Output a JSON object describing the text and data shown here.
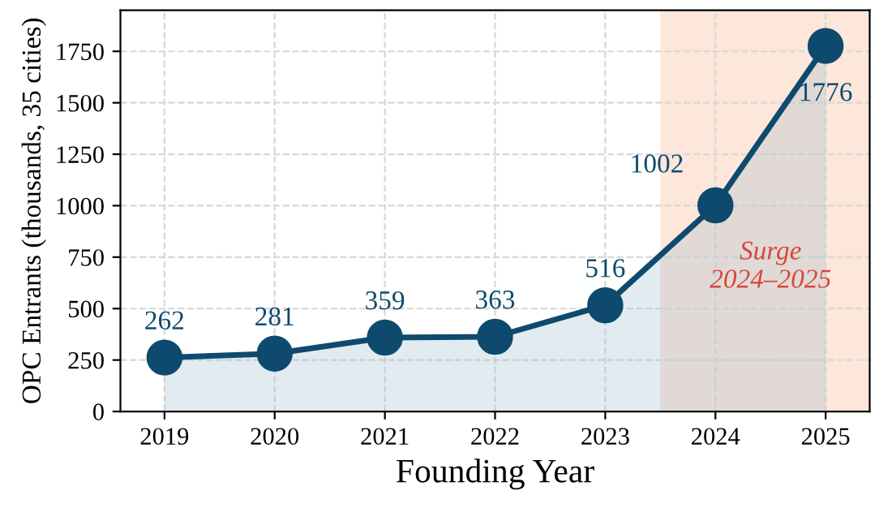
{
  "chart_data": {
    "type": "area",
    "xlabel": "Founding Year",
    "ylabel": "OPC Entrants (thousands, 35 cities)",
    "x": [
      2019,
      2020,
      2021,
      2022,
      2023,
      2024,
      2025
    ],
    "series": [
      {
        "color": "#0e4a6e",
        "values": [
          262,
          281,
          359,
          363,
          516,
          1002,
          1776
        ]
      }
    ],
    "xlim": [
      2018.6,
      2025.4
    ],
    "ylim": [
      0,
      1950
    ],
    "xticks": [
      2019,
      2020,
      2021,
      2022,
      2023,
      2024,
      2025
    ],
    "yticks": [
      0,
      250,
      500,
      750,
      1000,
      1250,
      1500,
      1750
    ],
    "bands": [
      {
        "axis": "x",
        "from": 2023.5,
        "to": 2025.4,
        "label": "Surge\n2024–2025",
        "color": "#fde6da"
      }
    ],
    "data_labels": true,
    "grid": true,
    "marker": "circle",
    "line_style": "solid"
  }
}
